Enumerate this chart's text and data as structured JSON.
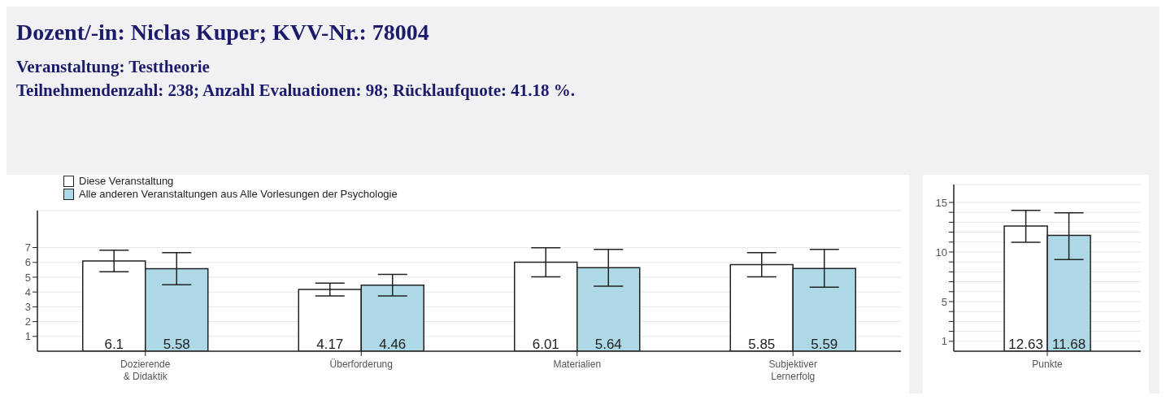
{
  "chart_data": [
    {
      "type": "bar",
      "title": "Dozent/-in: Niclas Kuper; KVV-Nr.: 78004",
      "subtitle": "Veranstaltung: Testtheorie",
      "annotations": [
        "Teilnehmendenzahl: 238; Anzahl Evaluationen: 98; Rücklaufquote: 41.18 %."
      ],
      "categories": [
        "Dozierende\n& Didaktik",
        "Überforderung",
        "Materialien",
        "Subjektiver\nLernerfolg"
      ],
      "series": [
        {
          "name": "Diese Veranstaltung",
          "color": "#ffffff",
          "values": [
            6.1,
            4.17,
            6.01,
            5.85
          ],
          "errors": [
            [
              5.37,
              6.82
            ],
            [
              3.74,
              4.6
            ],
            [
              5.03,
              6.99
            ],
            [
              5.03,
              6.66
            ]
          ]
        },
        {
          "name": "Alle anderen Veranstaltungen aus Alle Vorlesungen der Psychologie",
          "color": "#add8e6",
          "values": [
            5.58,
            4.46,
            5.64,
            5.59
          ],
          "errors": [
            [
              4.49,
              6.66
            ],
            [
              3.73,
              5.19
            ],
            [
              4.39,
              6.88
            ],
            [
              4.32,
              6.88
            ]
          ]
        }
      ],
      "ylim": [
        0,
        9.5
      ],
      "yticks": [
        1,
        2,
        3,
        4,
        5,
        6,
        7
      ],
      "grid": "y",
      "legend": "top left",
      "data_labels": true
    },
    {
      "type": "bar",
      "categories": [
        "Punkte"
      ],
      "series": [
        {
          "color": "#ffffff",
          "values": [
            12.63
          ],
          "errors": [
            [
              10.98,
              14.2
            ]
          ]
        },
        {
          "color": "#add8e6",
          "values": [
            11.68
          ],
          "errors": [
            [
              9.24,
              13.96
            ]
          ]
        }
      ],
      "ylim": [
        0,
        16.8
      ],
      "yticks": [
        {
          "value": 1,
          "label": "1"
        },
        {
          "value": 2,
          "label": null
        },
        {
          "value": 3,
          "label": null
        },
        {
          "value": 4,
          "label": null
        },
        {
          "value": 5,
          "label": "5"
        },
        {
          "value": 6,
          "label": null
        },
        {
          "value": 7,
          "label": null
        },
        {
          "value": 8,
          "label": null
        },
        {
          "value": 9,
          "label": null
        },
        {
          "value": 10,
          "label": "10"
        },
        {
          "value": 11,
          "label": null
        },
        {
          "value": 12,
          "label": null
        },
        {
          "value": 13,
          "label": null
        },
        {
          "value": 14,
          "label": null
        },
        {
          "value": 15,
          "label": "15"
        }
      ],
      "grid": "y",
      "data_labels": true
    }
  ]
}
